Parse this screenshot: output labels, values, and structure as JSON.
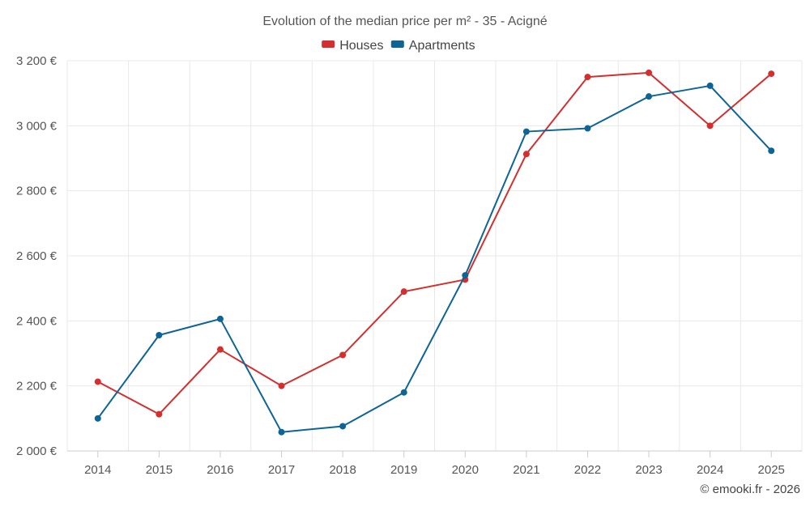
{
  "chart_data": {
    "type": "line",
    "title": "Evolution of the median price per m² - 35 - Acigné",
    "categories": [
      "2014",
      "2015",
      "2016",
      "2017",
      "2018",
      "2019",
      "2020",
      "2021",
      "2022",
      "2023",
      "2024",
      "2025"
    ],
    "series": [
      {
        "name": "Houses",
        "color": "#d32f2f",
        "values": [
          2213,
          2113,
          2312,
          2200,
          2295,
          2490,
          2527,
          2913,
          3150,
          3163,
          3000,
          3160
        ]
      },
      {
        "name": "Apartments",
        "color": "#0d6495",
        "values": [
          2100,
          2356,
          2406,
          2058,
          2076,
          2180,
          2540,
          2982,
          2992,
          3090,
          3123,
          2923
        ]
      }
    ],
    "ylim": [
      2000,
      3200
    ],
    "yticks": [
      2000,
      2200,
      2400,
      2600,
      2800,
      3000,
      3200
    ],
    "ytick_labels": [
      "2 000 €",
      "2 200 €",
      "2 400 €",
      "2 600 €",
      "2 800 €",
      "3 000 €",
      "3 200 €"
    ],
    "xlabel": "",
    "ylabel": "",
    "grid": true,
    "legend_position": "top-center"
  },
  "credit": "© emooki.fr - 2026"
}
